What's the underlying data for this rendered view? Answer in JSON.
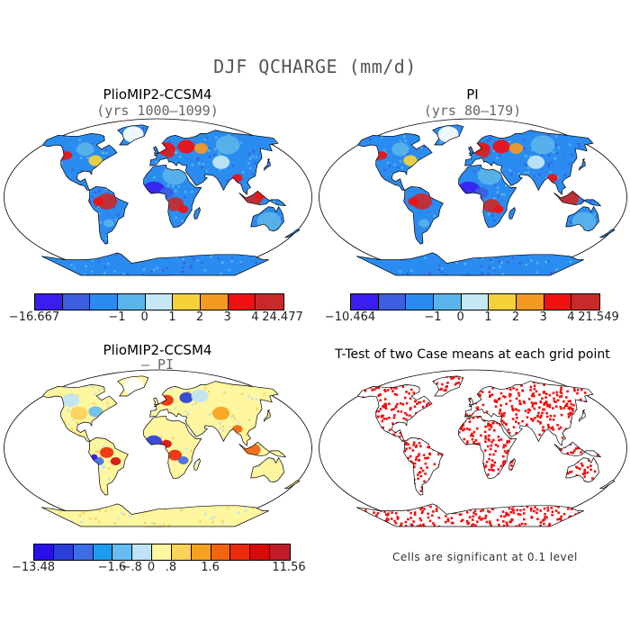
{
  "title": "DJF QCHARGE (mm/d)",
  "panels": {
    "tl": {
      "title": "PlioMIP2-CCSM4",
      "subtitle": "(yrs 1000–1099)"
    },
    "tr": {
      "title": "PI",
      "subtitle": "(yrs 80–179)"
    },
    "bl": {
      "title": "PlioMIP2-CCSM4",
      "subtitle": "– PI"
    },
    "br": {
      "title": "T-Test of two Case means at each grid point",
      "subtitle": ""
    }
  },
  "colorbars": {
    "tl": {
      "colors": [
        "#3a1df2",
        "#3c5fe0",
        "#2a8cf0",
        "#5ab4ea",
        "#c6e8f6",
        "#f6d23a",
        "#f49a22",
        "#f20f0f",
        "#c82a2a"
      ],
      "labels": [
        "−16.667",
        "−1",
        "0",
        "1",
        "2",
        "3",
        "4",
        "24.477"
      ]
    },
    "tr": {
      "colors": [
        "#3a1df2",
        "#3c5fe0",
        "#2a8cf0",
        "#5ab4ea",
        "#c6e8f6",
        "#f6d23a",
        "#f49a22",
        "#f20f0f",
        "#c82a2a"
      ],
      "labels": [
        "−10.464",
        "−1",
        "0",
        "1",
        "2",
        "3",
        "4",
        "21.549"
      ]
    },
    "bl": {
      "colors": [
        "#2a10e8",
        "#2a3ed8",
        "#3e6ee6",
        "#1f9bf0",
        "#66bdf2",
        "#bfe3f4",
        "#fff6a0",
        "#fcd25a",
        "#f7a21e",
        "#f3640e",
        "#ec2b0a",
        "#d80b0b",
        "#c01c28"
      ],
      "labels": [
        "−13.48",
        "−1.6",
        "−.8",
        "0",
        ".8",
        "1.6",
        "11.56"
      ]
    }
  },
  "significance_note": "Cells are significant at 0.1 level",
  "map_colors": {
    "ocean": "#ffffff",
    "land_default": "#2a8cf0",
    "significant": "#f20f0f"
  }
}
